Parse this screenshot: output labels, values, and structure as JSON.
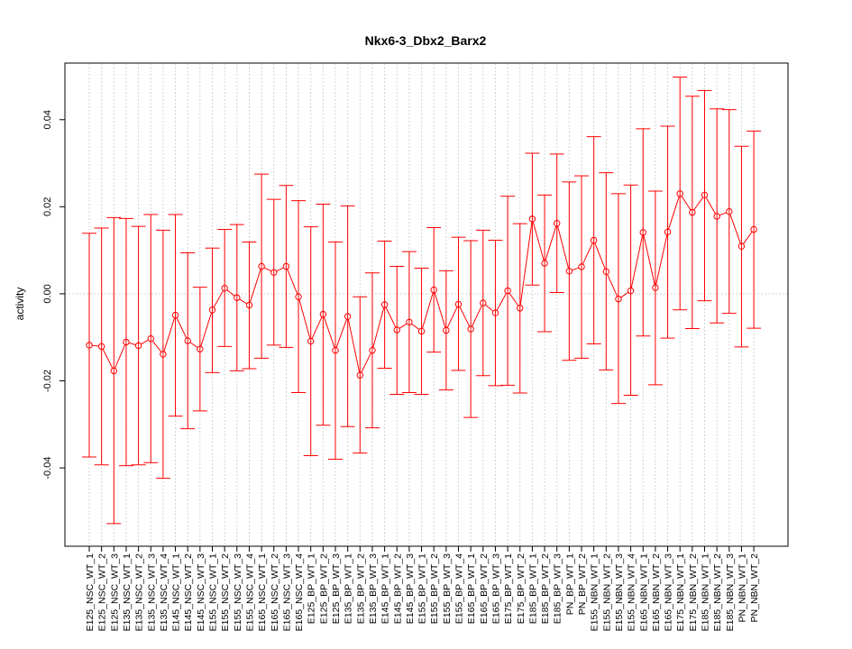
{
  "chart_data": {
    "type": "line",
    "title": "Nkx6-3_Dbx2_Barx2",
    "xlabel": "",
    "ylabel": "activity",
    "ylim": [
      -0.058,
      0.053
    ],
    "yticks": [
      -0.04,
      -0.02,
      0.0,
      0.02,
      0.04
    ],
    "ytick_labels": [
      "-0.04",
      "-0.02",
      "0.00",
      "0.02",
      "0.04"
    ],
    "grid": true,
    "reference_line": 0,
    "colors": {
      "series": "#ff0000",
      "grid": "#d3d3d3",
      "frame": "#000000"
    },
    "categories": [
      "E125_NSC_WT_1",
      "E125_NSC_WT_2",
      "E125_NSC_WT_3",
      "E135_NSC_WT_1",
      "E135_NSC_WT_2",
      "E135_NSC_WT_3",
      "E135_NSC_WT_4",
      "E145_NSC_WT_1",
      "E145_NSC_WT_2",
      "E145_NSC_WT_3",
      "E155_NSC_WT_1",
      "E155_NSC_WT_2",
      "E155_NSC_WT_3",
      "E155_NSC_WT_4",
      "E165_NSC_WT_1",
      "E165_NSC_WT_2",
      "E165_NSC_WT_3",
      "E165_NSC_WT_4",
      "E125_BP_WT_1",
      "E125_BP_WT_2",
      "E125_BP_WT_3",
      "E135_BP_WT_1",
      "E135_BP_WT_2",
      "E135_BP_WT_3",
      "E145_BP_WT_1",
      "E145_BP_WT_2",
      "E145_BP_WT_3",
      "E155_BP_WT_1",
      "E155_BP_WT_2",
      "E155_BP_WT_3",
      "E155_BP_WT_4",
      "E165_BP_WT_1",
      "E165_BP_WT_2",
      "E165_BP_WT_3",
      "E175_BP_WT_1",
      "E175_BP_WT_2",
      "E185_BP_WT_1",
      "E185_BP_WT_2",
      "E185_BP_WT_3",
      "PN_BP_WT_1",
      "PN_BP_WT_2",
      "E155_NBN_WT_1",
      "E155_NBN_WT_2",
      "E155_NBN_WT_3",
      "E155_NBN_WT_4",
      "E165_NBN_WT_1",
      "E165_NBN_WT_2",
      "E165_NBN_WT_3",
      "E175_NBN_WT_1",
      "E175_NBN_WT_2",
      "E185_NBN_WT_1",
      "E185_NBN_WT_2",
      "E185_NBN_WT_3",
      "PN_NBN_WT_1",
      "PN_NBN_WT_2"
    ],
    "series": [
      {
        "values": [
          -0.0118,
          -0.0121,
          -0.0177,
          -0.0111,
          -0.0119,
          -0.0103,
          -0.0139,
          -0.0049,
          -0.0108,
          -0.0127,
          -0.0037,
          0.0013,
          -0.0009,
          -0.0026,
          0.0063,
          0.0049,
          0.0063,
          -0.0007,
          -0.0109,
          -0.0047,
          -0.013,
          -0.0052,
          -0.0187,
          -0.013,
          -0.0025,
          -0.0083,
          -0.0065,
          -0.0086,
          0.0009,
          -0.0084,
          -0.0024,
          -0.0081,
          -0.0021,
          -0.0044,
          0.0007,
          -0.0033,
          0.0172,
          0.007,
          0.0162,
          0.0052,
          0.0062,
          0.0123,
          0.0051,
          -0.0012,
          0.0007,
          0.0141,
          0.0014,
          0.0142,
          0.023,
          0.0187,
          0.0227,
          0.0178,
          0.0189,
          0.0109,
          0.0148
        ],
        "upper": [
          0.0139,
          0.0151,
          0.0175,
          0.0173,
          0.0155,
          0.0182,
          0.0146,
          0.0182,
          0.0094,
          0.0015,
          0.0105,
          0.0148,
          0.0159,
          0.0119,
          0.0275,
          0.0217,
          0.0249,
          0.0214,
          0.0154,
          0.0206,
          0.0119,
          0.0202,
          -0.0007,
          0.0048,
          0.0121,
          0.0063,
          0.0097,
          0.0059,
          0.0152,
          0.0053,
          0.013,
          0.0122,
          0.0146,
          0.0123,
          0.0224,
          0.0161,
          0.0323,
          0.0227,
          0.0321,
          0.0257,
          0.0271,
          0.0361,
          0.0278,
          0.023,
          0.025,
          0.0379,
          0.0236,
          0.0385,
          0.0498,
          0.0454,
          0.0467,
          0.0425,
          0.0423,
          0.0339,
          0.0374
        ],
        "lower": [
          -0.0375,
          -0.0393,
          -0.0528,
          -0.0395,
          -0.0393,
          -0.0388,
          -0.0424,
          -0.0281,
          -0.031,
          -0.0269,
          -0.0181,
          -0.0121,
          -0.0177,
          -0.0172,
          -0.0148,
          -0.0118,
          -0.0123,
          -0.0227,
          -0.0372,
          -0.0302,
          -0.038,
          -0.0305,
          -0.0366,
          -0.0308,
          -0.0171,
          -0.0231,
          -0.0227,
          -0.0231,
          -0.0134,
          -0.0221,
          -0.0176,
          -0.0284,
          -0.0188,
          -0.0211,
          -0.021,
          -0.0228,
          0.002,
          -0.0087,
          0.0003,
          -0.0153,
          -0.0148,
          -0.0115,
          -0.0175,
          -0.0252,
          -0.0233,
          -0.0097,
          -0.0209,
          -0.0102,
          -0.0037,
          -0.008,
          -0.0016,
          -0.0067,
          -0.0045,
          -0.0122,
          -0.0079
        ]
      }
    ]
  }
}
